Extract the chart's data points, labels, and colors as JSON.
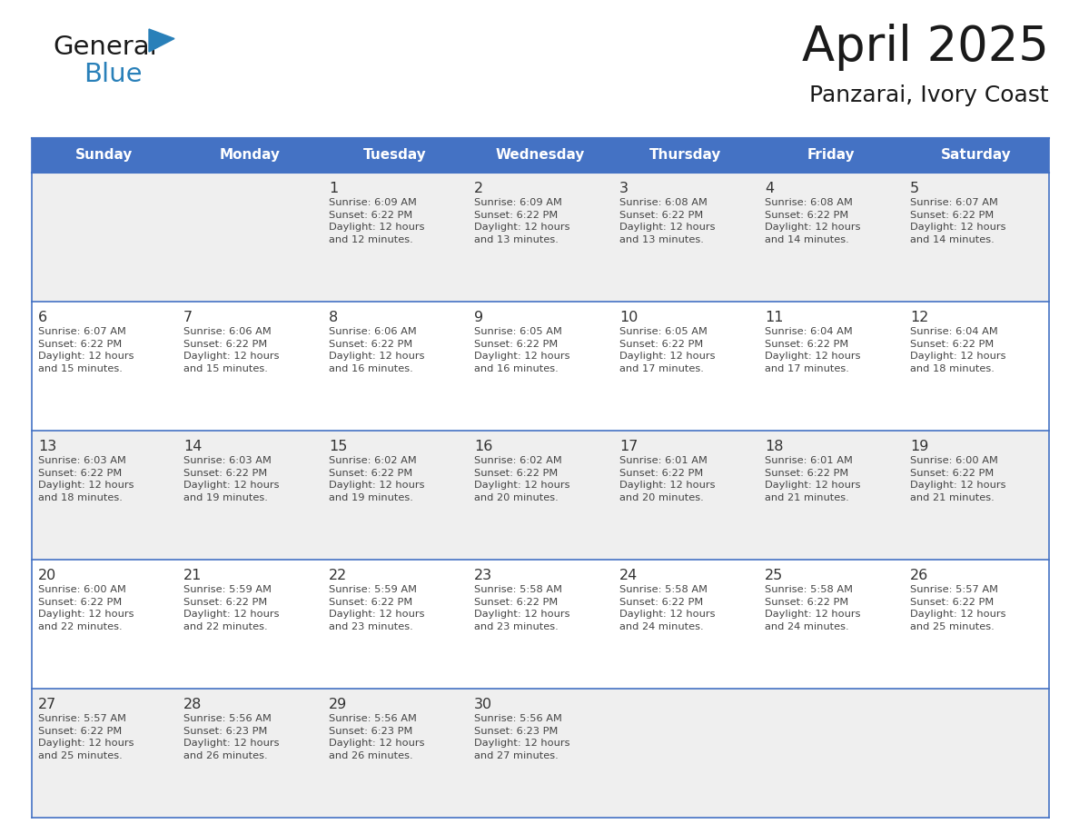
{
  "title": "April 2025",
  "subtitle": "Panzarai, Ivory Coast",
  "days_of_week": [
    "Sunday",
    "Monday",
    "Tuesday",
    "Wednesday",
    "Thursday",
    "Friday",
    "Saturday"
  ],
  "header_bg": "#4472C4",
  "header_text": "#FFFFFF",
  "cell_bg_odd": "#EFEFEF",
  "cell_bg_even": "#FFFFFF",
  "border_color": "#4472C4",
  "separator_color": "#4472C4",
  "text_color": "#444444",
  "day_number_color": "#333333",
  "calendar": [
    [
      null,
      null,
      {
        "day": 1,
        "sunrise": "6:09 AM",
        "sunset": "6:22 PM",
        "daylight_min": "12 minutes."
      },
      {
        "day": 2,
        "sunrise": "6:09 AM",
        "sunset": "6:22 PM",
        "daylight_min": "13 minutes."
      },
      {
        "day": 3,
        "sunrise": "6:08 AM",
        "sunset": "6:22 PM",
        "daylight_min": "13 minutes."
      },
      {
        "day": 4,
        "sunrise": "6:08 AM",
        "sunset": "6:22 PM",
        "daylight_min": "14 minutes."
      },
      {
        "day": 5,
        "sunrise": "6:07 AM",
        "sunset": "6:22 PM",
        "daylight_min": "14 minutes."
      }
    ],
    [
      {
        "day": 6,
        "sunrise": "6:07 AM",
        "sunset": "6:22 PM",
        "daylight_min": "15 minutes."
      },
      {
        "day": 7,
        "sunrise": "6:06 AM",
        "sunset": "6:22 PM",
        "daylight_min": "15 minutes."
      },
      {
        "day": 8,
        "sunrise": "6:06 AM",
        "sunset": "6:22 PM",
        "daylight_min": "16 minutes."
      },
      {
        "day": 9,
        "sunrise": "6:05 AM",
        "sunset": "6:22 PM",
        "daylight_min": "16 minutes."
      },
      {
        "day": 10,
        "sunrise": "6:05 AM",
        "sunset": "6:22 PM",
        "daylight_min": "17 minutes."
      },
      {
        "day": 11,
        "sunrise": "6:04 AM",
        "sunset": "6:22 PM",
        "daylight_min": "17 minutes."
      },
      {
        "day": 12,
        "sunrise": "6:04 AM",
        "sunset": "6:22 PM",
        "daylight_min": "18 minutes."
      }
    ],
    [
      {
        "day": 13,
        "sunrise": "6:03 AM",
        "sunset": "6:22 PM",
        "daylight_min": "18 minutes."
      },
      {
        "day": 14,
        "sunrise": "6:03 AM",
        "sunset": "6:22 PM",
        "daylight_min": "19 minutes."
      },
      {
        "day": 15,
        "sunrise": "6:02 AM",
        "sunset": "6:22 PM",
        "daylight_min": "19 minutes."
      },
      {
        "day": 16,
        "sunrise": "6:02 AM",
        "sunset": "6:22 PM",
        "daylight_min": "20 minutes."
      },
      {
        "day": 17,
        "sunrise": "6:01 AM",
        "sunset": "6:22 PM",
        "daylight_min": "20 minutes."
      },
      {
        "day": 18,
        "sunrise": "6:01 AM",
        "sunset": "6:22 PM",
        "daylight_min": "21 minutes."
      },
      {
        "day": 19,
        "sunrise": "6:00 AM",
        "sunset": "6:22 PM",
        "daylight_min": "21 minutes."
      }
    ],
    [
      {
        "day": 20,
        "sunrise": "6:00 AM",
        "sunset": "6:22 PM",
        "daylight_min": "22 minutes."
      },
      {
        "day": 21,
        "sunrise": "5:59 AM",
        "sunset": "6:22 PM",
        "daylight_min": "22 minutes."
      },
      {
        "day": 22,
        "sunrise": "5:59 AM",
        "sunset": "6:22 PM",
        "daylight_min": "23 minutes."
      },
      {
        "day": 23,
        "sunrise": "5:58 AM",
        "sunset": "6:22 PM",
        "daylight_min": "23 minutes."
      },
      {
        "day": 24,
        "sunrise": "5:58 AM",
        "sunset": "6:22 PM",
        "daylight_min": "24 minutes."
      },
      {
        "day": 25,
        "sunrise": "5:58 AM",
        "sunset": "6:22 PM",
        "daylight_min": "24 minutes."
      },
      {
        "day": 26,
        "sunrise": "5:57 AM",
        "sunset": "6:22 PM",
        "daylight_min": "25 minutes."
      }
    ],
    [
      {
        "day": 27,
        "sunrise": "5:57 AM",
        "sunset": "6:22 PM",
        "daylight_min": "25 minutes."
      },
      {
        "day": 28,
        "sunrise": "5:56 AM",
        "sunset": "6:23 PM",
        "daylight_min": "26 minutes."
      },
      {
        "day": 29,
        "sunrise": "5:56 AM",
        "sunset": "6:23 PM",
        "daylight_min": "26 minutes."
      },
      {
        "day": 30,
        "sunrise": "5:56 AM",
        "sunset": "6:23 PM",
        "daylight_min": "27 minutes."
      },
      null,
      null,
      null
    ]
  ],
  "logo_general_color": "#1a1a1a",
  "logo_blue_color": "#2980B9",
  "logo_triangle_color": "#2980B9",
  "title_color": "#1a1a1a",
  "subtitle_color": "#1a1a1a"
}
